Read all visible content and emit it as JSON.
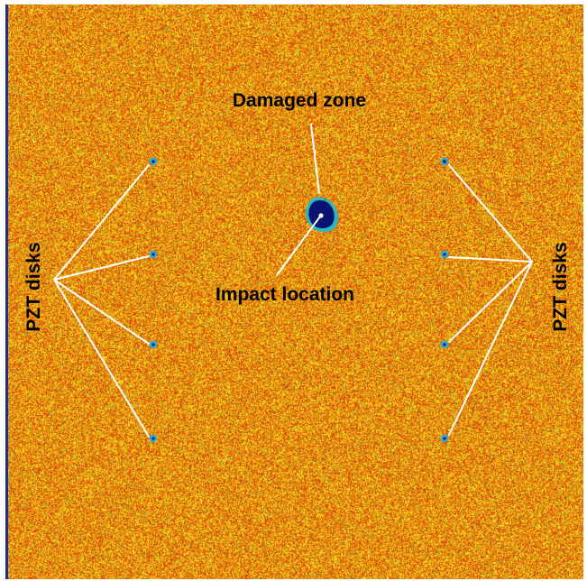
{
  "labels": {
    "damaged_zone": "Damaged zone",
    "impact_location": "Impact location",
    "pzt_left": "PZT disks",
    "pzt_right": "PZT disks"
  },
  "colors": {
    "background_base": "#e89a10",
    "red_speckle": "#d84a0c",
    "yellow_speckle": "#f4dc1e",
    "green_speckle": "#7fc53a",
    "damage_core": "#0a1470",
    "damage_ring": "#2fb6c4",
    "sensor_dot": "#1e8fc9",
    "leader_line": "#ffffff",
    "label_text": "#000000"
  }
}
